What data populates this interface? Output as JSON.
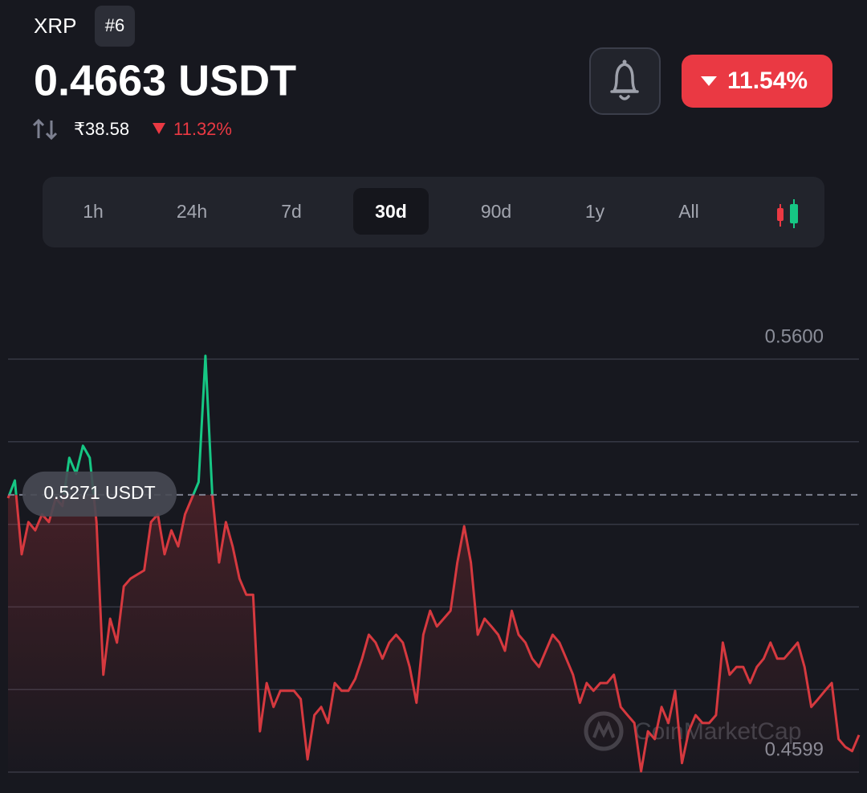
{
  "header": {
    "symbol": "XRP",
    "rank": "#6",
    "price": "0.4663 USDT",
    "inr_price": "₹38.58",
    "inr_change": "11.32%",
    "change_badge": "11.54%"
  },
  "tabs": [
    "1h",
    "24h",
    "7d",
    "30d",
    "90d",
    "1y",
    "All"
  ],
  "active_tab": 3,
  "watermark": "CoinMarketCap",
  "chart_data": {
    "type": "line",
    "values": [
      0.5263,
      0.5306,
      0.5127,
      0.5205,
      0.5185,
      0.5224,
      0.5205,
      0.5263,
      0.5244,
      0.5361,
      0.5322,
      0.539,
      0.5361,
      0.5205,
      0.4835,
      0.4971,
      0.4913,
      0.5049,
      0.5068,
      0.5078,
      0.5088,
      0.5205,
      0.5224,
      0.5127,
      0.5185,
      0.5146,
      0.5224,
      0.5263,
      0.5302,
      0.5608,
      0.5273,
      0.5107,
      0.5205,
      0.5146,
      0.5068,
      0.5029,
      0.5029,
      0.4698,
      0.4815,
      0.4757,
      0.4796,
      0.4796,
      0.4796,
      0.4776,
      0.463,
      0.4737,
      0.4757,
      0.4718,
      0.4815,
      0.4796,
      0.4796,
      0.4825,
      0.4874,
      0.4932,
      0.4913,
      0.4874,
      0.4913,
      0.4932,
      0.4913,
      0.4854,
      0.4767,
      0.4932,
      0.499,
      0.4952,
      0.4971,
      0.499,
      0.5107,
      0.5195,
      0.5107,
      0.4932,
      0.4971,
      0.4952,
      0.4932,
      0.4893,
      0.499,
      0.4932,
      0.4913,
      0.4874,
      0.4854,
      0.4893,
      0.4932,
      0.4913,
      0.4874,
      0.4835,
      0.4767,
      0.4815,
      0.4796,
      0.4815,
      0.4815,
      0.4835,
      0.4757,
      0.4737,
      0.4718,
      0.4601,
      0.4698,
      0.4679,
      0.4757,
      0.4718,
      0.4796,
      0.4621,
      0.4698,
      0.4737,
      0.4718,
      0.4718,
      0.4737,
      0.4913,
      0.4835,
      0.4854,
      0.4854,
      0.4815,
      0.4854,
      0.4874,
      0.4913,
      0.4874,
      0.4874,
      0.4893,
      0.4913,
      0.4854,
      0.4757,
      0.4776,
      0.4796,
      0.4815,
      0.4679,
      0.466,
      0.465,
      0.4689
    ],
    "ylim": [
      0.4599,
      0.56
    ],
    "yticks": [
      {
        "value": 0.56,
        "label": "0.5600"
      },
      {
        "value": 0.4599,
        "label": "0.4599"
      }
    ],
    "reference": {
      "value": 0.5271,
      "label": "0.5271 USDT"
    },
    "up_color": "#16c784",
    "down_color": "#d6393f",
    "grid": true
  }
}
